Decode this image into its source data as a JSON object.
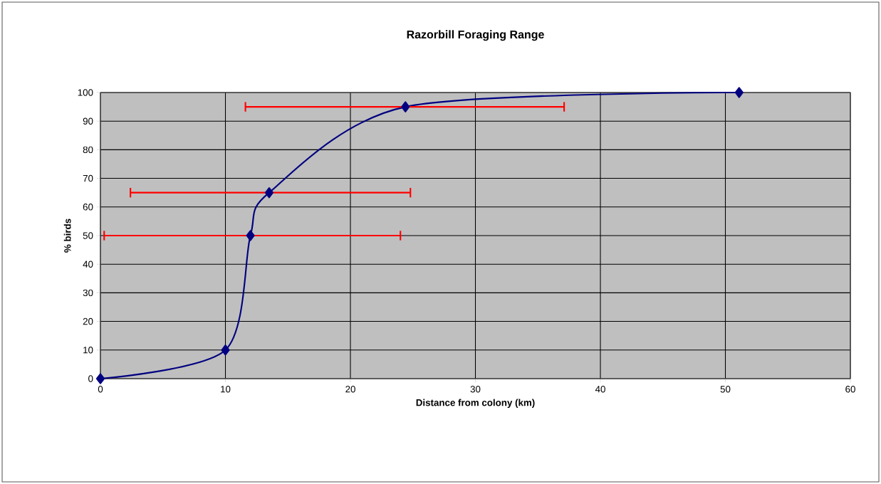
{
  "chart_data": {
    "type": "line",
    "title": "Razorbill Foraging Range",
    "xlabel": "Distance from colony (km)",
    "ylabel": "% birds",
    "x": [
      0,
      10,
      12,
      13.5,
      24.4,
      51.1
    ],
    "series": [
      {
        "color": "#000080",
        "values": [
          0,
          10,
          50,
          65,
          95,
          100
        ],
        "xerrors": [
          null,
          null,
          [
            0.3,
            24.0
          ],
          [
            2.4,
            24.8
          ],
          [
            11.6,
            37.1
          ],
          null
        ]
      }
    ],
    "xlim": [
      0,
      60
    ],
    "xticks": [
      0,
      10,
      20,
      30,
      40,
      50,
      60
    ],
    "ylim": [
      0,
      100
    ],
    "yticks": [
      0,
      10,
      20,
      30,
      40,
      50,
      60,
      70,
      80,
      90,
      100
    ],
    "grid": true,
    "marker": "diamond",
    "line_style": "solid"
  }
}
